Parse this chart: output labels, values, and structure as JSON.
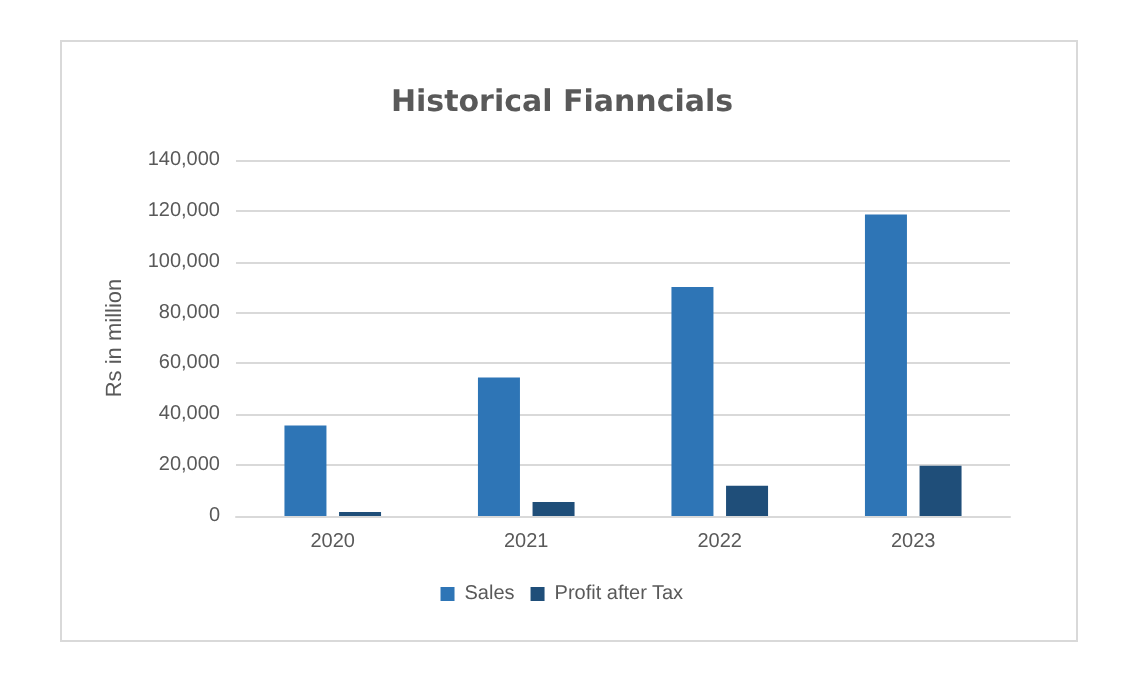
{
  "chart_data": {
    "type": "bar",
    "title": "Historical Fianncials",
    "ylabel": "Rs in million",
    "categories": [
      "2020",
      "2021",
      "2022",
      "2023"
    ],
    "series": [
      {
        "name": "Sales",
        "color": "#2e75b6",
        "values": [
          35600,
          54500,
          90100,
          118600
        ]
      },
      {
        "name": "Profit after Tax",
        "color": "#1f4e79",
        "values": [
          1600,
          5500,
          11900,
          19800
        ]
      }
    ],
    "ylim": [
      0,
      140000
    ],
    "yticks": [
      0,
      {
        "value": 20000,
        "label": "20,000"
      },
      {
        "value": 40000,
        "label": "40,000"
      },
      {
        "value": 60000,
        "label": "60,000"
      },
      {
        "value": 80000,
        "label": "80,000"
      },
      {
        "value": 100000,
        "label": "100,000"
      },
      {
        "value": 120000,
        "label": "120,000"
      },
      {
        "value": 140000,
        "label": "140,000"
      }
    ],
    "grid": "y",
    "legend": "bottom"
  }
}
